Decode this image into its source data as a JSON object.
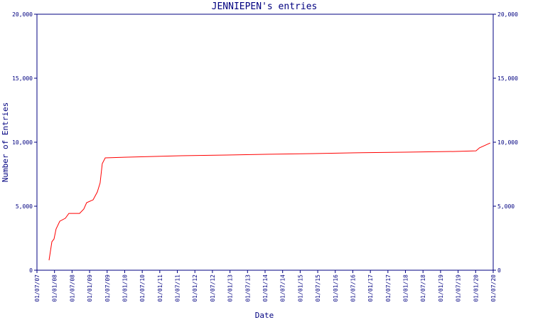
{
  "chart_data": {
    "type": "line",
    "title": "JENNIEPEN's entries",
    "x_label": "Date",
    "y_label": "Number of Entries",
    "xlim": [
      0,
      26
    ],
    "xticks": [
      {
        "value": 0,
        "label": "01/07/07"
      },
      {
        "value": 1,
        "label": "01/01/08"
      },
      {
        "value": 2,
        "label": "01/07/08"
      },
      {
        "value": 3,
        "label": "01/01/09"
      },
      {
        "value": 4,
        "label": "01/07/09"
      },
      {
        "value": 5,
        "label": "01/01/10"
      },
      {
        "value": 6,
        "label": "01/07/10"
      },
      {
        "value": 7,
        "label": "01/01/11"
      },
      {
        "value": 8,
        "label": "01/07/11"
      },
      {
        "value": 9,
        "label": "01/01/12"
      },
      {
        "value": 10,
        "label": "01/07/12"
      },
      {
        "value": 11,
        "label": "01/01/13"
      },
      {
        "value": 12,
        "label": "01/07/13"
      },
      {
        "value": 13,
        "label": "01/01/14"
      },
      {
        "value": 14,
        "label": "01/07/14"
      },
      {
        "value": 15,
        "label": "01/01/15"
      },
      {
        "value": 16,
        "label": "01/07/15"
      },
      {
        "value": 17,
        "label": "01/01/16"
      },
      {
        "value": 18,
        "label": "01/07/16"
      },
      {
        "value": 19,
        "label": "01/01/17"
      },
      {
        "value": 20,
        "label": "01/07/17"
      },
      {
        "value": 21,
        "label": "01/01/18"
      },
      {
        "value": 22,
        "label": "01/07/18"
      },
      {
        "value": 23,
        "label": "01/01/19"
      },
      {
        "value": 24,
        "label": "01/07/19"
      },
      {
        "value": 25,
        "label": "01/01/20"
      },
      {
        "value": 26,
        "label": "01/07/20"
      }
    ],
    "ylim": [
      0,
      20000
    ],
    "yticks": [
      0,
      {
        "value": 5000,
        "label": "5,000"
      },
      {
        "value": 10000,
        "label": "10,000"
      },
      {
        "value": 15000,
        "label": "15,000"
      },
      {
        "value": 20000,
        "label": "20,000"
      }
    ],
    "x": [
      0.69,
      0.85,
      0.97,
      1.09,
      1.3,
      1.62,
      1.82,
      2.43,
      2.67,
      2.83,
      3.2,
      3.44,
      3.6,
      3.72,
      3.89,
      4.98,
      8.02,
      10.85,
      13.28,
      15.71,
      18.14,
      20.97,
      23.81,
      25.02,
      25.22,
      25.83
    ],
    "series": [
      {
        "color": "#ff0000",
        "values": [
          780,
          2220,
          2440,
          3220,
          3830,
          4060,
          4440,
          4440,
          4780,
          5280,
          5500,
          6110,
          6830,
          8330,
          8780,
          8830,
          8940,
          9000,
          9060,
          9110,
          9170,
          9220,
          9280,
          9330,
          9560,
          9940
        ]
      }
    ],
    "axis_color": "#000080"
  }
}
